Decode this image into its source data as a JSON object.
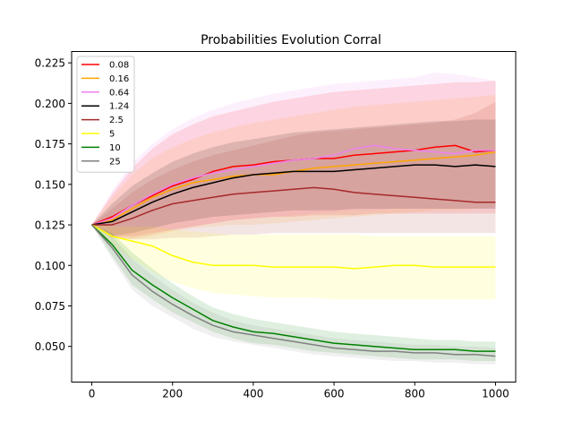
{
  "chart_data": {
    "type": "line",
    "title": "Probabilities Evolution Corral",
    "xlabel": "",
    "ylabel": "",
    "xlim": [
      -50,
      1050
    ],
    "ylim": [
      0.028,
      0.232
    ],
    "xticks": [
      0,
      200,
      400,
      600,
      800,
      1000
    ],
    "yticks": [
      0.05,
      0.075,
      0.1,
      0.125,
      0.15,
      0.175,
      0.2,
      0.225
    ],
    "grid": false,
    "legend_position": "upper-left",
    "series": [
      {
        "name": "0.08",
        "color": "#ff0000",
        "x": [
          0,
          50,
          100,
          150,
          200,
          250,
          300,
          350,
          400,
          450,
          500,
          550,
          600,
          650,
          700,
          750,
          800,
          850,
          900,
          950,
          1000
        ],
        "y": [
          0.125,
          0.13,
          0.137,
          0.143,
          0.149,
          0.153,
          0.158,
          0.161,
          0.162,
          0.164,
          0.165,
          0.166,
          0.166,
          0.168,
          0.169,
          0.17,
          0.171,
          0.173,
          0.174,
          0.17,
          0.171
        ],
        "band_upper": [
          0.125,
          0.144,
          0.16,
          0.172,
          0.181,
          0.187,
          0.192,
          0.195,
          0.198,
          0.201,
          0.203,
          0.205,
          0.207,
          0.208,
          0.209,
          0.21,
          0.211,
          0.212,
          0.213,
          0.213,
          0.214
        ],
        "band_lower": [
          0.125,
          0.118,
          0.118,
          0.12,
          0.122,
          0.124,
          0.126,
          0.128,
          0.129,
          0.13,
          0.13,
          0.131,
          0.131,
          0.131,
          0.132,
          0.132,
          0.132,
          0.132,
          0.132,
          0.132,
          0.132
        ]
      },
      {
        "name": "0.16",
        "color": "#ffa500",
        "x": [
          0,
          50,
          100,
          150,
          200,
          250,
          300,
          350,
          400,
          450,
          500,
          550,
          600,
          650,
          700,
          750,
          800,
          850,
          900,
          950,
          1000
        ],
        "y": [
          0.125,
          0.128,
          0.135,
          0.142,
          0.147,
          0.151,
          0.153,
          0.155,
          0.156,
          0.156,
          0.158,
          0.16,
          0.161,
          0.162,
          0.163,
          0.164,
          0.165,
          0.166,
          0.167,
          0.168,
          0.17
        ],
        "band_upper": [
          0.125,
          0.142,
          0.156,
          0.166,
          0.173,
          0.178,
          0.182,
          0.185,
          0.188,
          0.19,
          0.192,
          0.194,
          0.196,
          0.198,
          0.199,
          0.2,
          0.201,
          0.202,
          0.203,
          0.204,
          0.205
        ],
        "band_lower": [
          0.125,
          0.117,
          0.116,
          0.118,
          0.121,
          0.123,
          0.124,
          0.125,
          0.125,
          0.126,
          0.127,
          0.128,
          0.129,
          0.13,
          0.131,
          0.132,
          0.133,
          0.134,
          0.134,
          0.135,
          0.136
        ]
      },
      {
        "name": "0.64",
        "color": "#ee82ee",
        "x": [
          0,
          50,
          100,
          150,
          200,
          250,
          300,
          350,
          400,
          450,
          500,
          550,
          600,
          650,
          700,
          750,
          800,
          850,
          900,
          950,
          1000
        ],
        "y": [
          0.125,
          0.129,
          0.137,
          0.144,
          0.15,
          0.154,
          0.157,
          0.159,
          0.161,
          0.163,
          0.165,
          0.166,
          0.168,
          0.172,
          0.174,
          0.172,
          0.171,
          0.17,
          0.169,
          0.171,
          0.171
        ],
        "band_upper": [
          0.125,
          0.146,
          0.163,
          0.175,
          0.184,
          0.191,
          0.196,
          0.2,
          0.203,
          0.206,
          0.208,
          0.21,
          0.212,
          0.213,
          0.214,
          0.215,
          0.216,
          0.219,
          0.218,
          0.216,
          0.214
        ],
        "band_lower": [
          0.125,
          0.117,
          0.117,
          0.119,
          0.122,
          0.124,
          0.126,
          0.128,
          0.129,
          0.13,
          0.131,
          0.132,
          0.133,
          0.134,
          0.134,
          0.135,
          0.135,
          0.135,
          0.135,
          0.135,
          0.135
        ]
      },
      {
        "name": "1.24",
        "color": "#000000",
        "x": [
          0,
          50,
          100,
          150,
          200,
          250,
          300,
          350,
          400,
          450,
          500,
          550,
          600,
          650,
          700,
          750,
          800,
          850,
          900,
          950,
          1000
        ],
        "y": [
          0.125,
          0.127,
          0.133,
          0.139,
          0.144,
          0.148,
          0.151,
          0.154,
          0.156,
          0.157,
          0.158,
          0.158,
          0.158,
          0.159,
          0.16,
          0.161,
          0.162,
          0.162,
          0.161,
          0.162,
          0.161
        ],
        "band_upper": [
          0.125,
          0.138,
          0.149,
          0.157,
          0.164,
          0.169,
          0.173,
          0.176,
          0.178,
          0.18,
          0.182,
          0.183,
          0.184,
          0.185,
          0.186,
          0.187,
          0.188,
          0.189,
          0.189,
          0.19,
          0.19
        ],
        "band_lower": [
          0.125,
          0.118,
          0.12,
          0.123,
          0.126,
          0.128,
          0.13,
          0.131,
          0.132,
          0.133,
          0.134,
          0.134,
          0.134,
          0.135,
          0.135,
          0.135,
          0.135,
          0.135,
          0.135,
          0.135,
          0.135
        ]
      },
      {
        "name": "2.5",
        "color": "#a52a2a",
        "x": [
          0,
          50,
          100,
          150,
          200,
          250,
          300,
          350,
          400,
          450,
          500,
          550,
          600,
          650,
          700,
          750,
          800,
          850,
          900,
          950,
          1000
        ],
        "y": [
          0.125,
          0.125,
          0.129,
          0.134,
          0.138,
          0.14,
          0.142,
          0.144,
          0.145,
          0.146,
          0.147,
          0.148,
          0.147,
          0.145,
          0.144,
          0.143,
          0.142,
          0.141,
          0.14,
          0.139,
          0.139
        ],
        "band_upper": [
          0.125,
          0.135,
          0.145,
          0.153,
          0.159,
          0.164,
          0.168,
          0.171,
          0.174,
          0.177,
          0.18,
          0.182,
          0.183,
          0.184,
          0.185,
          0.186,
          0.187,
          0.188,
          0.19,
          0.194,
          0.201
        ],
        "band_lower": [
          0.125,
          0.117,
          0.116,
          0.116,
          0.117,
          0.117,
          0.118,
          0.119,
          0.119,
          0.12,
          0.12,
          0.12,
          0.12,
          0.12,
          0.12,
          0.12,
          0.12,
          0.12,
          0.12,
          0.12,
          0.12
        ]
      },
      {
        "name": "5",
        "color": "#ffff00",
        "x": [
          0,
          50,
          100,
          150,
          200,
          250,
          300,
          350,
          400,
          450,
          500,
          550,
          600,
          650,
          700,
          750,
          800,
          850,
          900,
          950,
          1000
        ],
        "y": [
          0.125,
          0.118,
          0.115,
          0.112,
          0.106,
          0.102,
          0.1,
          0.1,
          0.1,
          0.099,
          0.099,
          0.099,
          0.099,
          0.098,
          0.099,
          0.1,
          0.1,
          0.099,
          0.099,
          0.099,
          0.099
        ],
        "band_upper": [
          0.125,
          0.124,
          0.124,
          0.124,
          0.122,
          0.121,
          0.12,
          0.119,
          0.119,
          0.119,
          0.119,
          0.119,
          0.119,
          0.119,
          0.118,
          0.118,
          0.118,
          0.118,
          0.118,
          0.118,
          0.118
        ],
        "band_lower": [
          0.125,
          0.112,
          0.104,
          0.096,
          0.09,
          0.086,
          0.083,
          0.082,
          0.081,
          0.08,
          0.08,
          0.08,
          0.079,
          0.079,
          0.079,
          0.079,
          0.079,
          0.079,
          0.079,
          0.079,
          0.079
        ]
      },
      {
        "name": "10",
        "color": "#008000",
        "x": [
          0,
          50,
          100,
          150,
          200,
          250,
          300,
          350,
          400,
          450,
          500,
          550,
          600,
          650,
          700,
          750,
          800,
          850,
          900,
          950,
          1000
        ],
        "y": [
          0.125,
          0.113,
          0.097,
          0.088,
          0.08,
          0.073,
          0.066,
          0.062,
          0.059,
          0.058,
          0.056,
          0.054,
          0.052,
          0.051,
          0.05,
          0.049,
          0.048,
          0.048,
          0.048,
          0.047,
          0.047
        ],
        "band_upper": [
          0.125,
          0.12,
          0.108,
          0.098,
          0.089,
          0.081,
          0.074,
          0.07,
          0.067,
          0.065,
          0.063,
          0.061,
          0.059,
          0.058,
          0.057,
          0.056,
          0.055,
          0.054,
          0.054,
          0.053,
          0.053
        ],
        "band_lower": [
          0.125,
          0.106,
          0.088,
          0.079,
          0.071,
          0.065,
          0.059,
          0.055,
          0.052,
          0.051,
          0.049,
          0.047,
          0.046,
          0.045,
          0.044,
          0.043,
          0.042,
          0.042,
          0.042,
          0.041,
          0.041
        ]
      },
      {
        "name": "25",
        "color": "#808080",
        "x": [
          0,
          50,
          100,
          150,
          200,
          250,
          300,
          350,
          400,
          450,
          500,
          550,
          600,
          650,
          700,
          750,
          800,
          850,
          900,
          950,
          1000
        ],
        "y": [
          0.125,
          0.111,
          0.094,
          0.084,
          0.076,
          0.069,
          0.063,
          0.059,
          0.057,
          0.055,
          0.053,
          0.051,
          0.049,
          0.048,
          0.047,
          0.047,
          0.046,
          0.046,
          0.045,
          0.045,
          0.044
        ],
        "band_upper": [
          0.125,
          0.118,
          0.104,
          0.094,
          0.085,
          0.077,
          0.071,
          0.066,
          0.063,
          0.061,
          0.059,
          0.057,
          0.055,
          0.054,
          0.053,
          0.052,
          0.051,
          0.051,
          0.05,
          0.05,
          0.049
        ],
        "band_lower": [
          0.125,
          0.104,
          0.085,
          0.075,
          0.068,
          0.061,
          0.056,
          0.053,
          0.051,
          0.049,
          0.047,
          0.045,
          0.044,
          0.043,
          0.042,
          0.041,
          0.041,
          0.04,
          0.04,
          0.039,
          0.039
        ]
      }
    ]
  }
}
